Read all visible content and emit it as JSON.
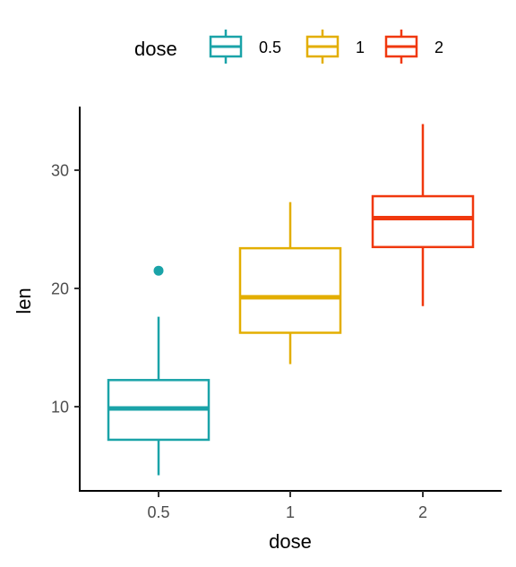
{
  "chart_data": {
    "type": "box",
    "xlabel": "dose",
    "ylabel": "len",
    "categories": [
      "0.5",
      "1",
      "2"
    ],
    "ylim": [
      2.5,
      35
    ],
    "yticks": [
      10,
      20,
      30
    ],
    "grid": false,
    "legend": {
      "title": "dose",
      "position": "top",
      "items": [
        "0.5",
        "1",
        "2"
      ]
    },
    "series": [
      {
        "category": "0.5",
        "color": "#1AA3A8",
        "min": 4.2,
        "q1": 7.2,
        "median": 9.85,
        "q3": 12.25,
        "max": 17.6,
        "outliers": [
          21.5
        ]
      },
      {
        "category": "1",
        "color": "#E3AE00",
        "min": 13.6,
        "q1": 16.25,
        "median": 19.25,
        "q3": 23.4,
        "max": 27.3,
        "outliers": []
      },
      {
        "category": "2",
        "color": "#F0380E",
        "min": 18.5,
        "q1": 23.5,
        "median": 25.95,
        "q3": 27.8,
        "max": 33.9,
        "outliers": []
      }
    ]
  }
}
